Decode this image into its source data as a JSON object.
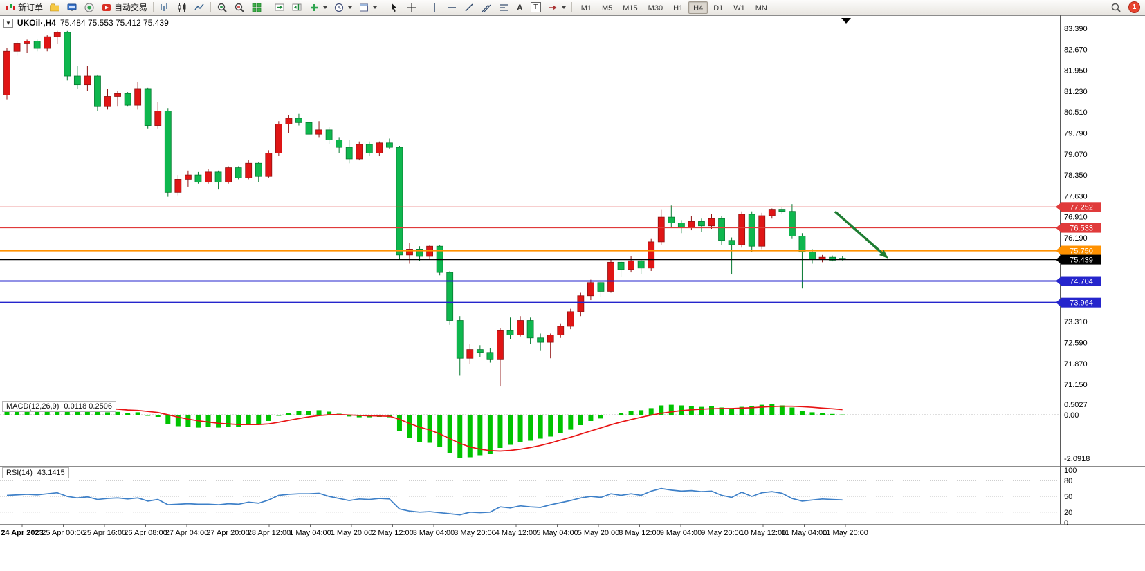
{
  "toolbar": {
    "new_order": "新订单",
    "auto_trading": "自动交易",
    "text_tool": "A",
    "text_label_tool": "T",
    "timeframes": [
      "M1",
      "M5",
      "M15",
      "M30",
      "H1",
      "H4",
      "D1",
      "W1",
      "MN"
    ],
    "active_timeframe": "H4",
    "badge_count": "1"
  },
  "chart": {
    "title": "UKOil·,H4",
    "ohlc_display": "75.484 75.553 75.412 75.439",
    "current_price": "75.439",
    "colors": {
      "up": "#e01515",
      "down": "#0eb74e",
      "up_edge": "#8f1212",
      "down_edge": "#077a31"
    },
    "price_axis": {
      "max": 83.39,
      "step": 0.72,
      "labels": [
        "83.390",
        "82.670",
        "81.950",
        "81.230",
        "80.510",
        "79.790",
        "79.070",
        "78.350",
        "77.630",
        "76.910",
        "76.190",
        "75.470",
        "74.750",
        "74.030",
        "73.310",
        "72.590",
        "71.870",
        "71.150"
      ]
    },
    "lines": [
      {
        "price": 77.252,
        "label": "77.252",
        "color": "#e03a3a",
        "width": 1.2
      },
      {
        "price": 76.533,
        "label": "76.533",
        "color": "#e03a3a",
        "width": 1.2
      },
      {
        "price": 75.75,
        "label": "75.750",
        "color": "#ff9100",
        "width": 2.2
      },
      {
        "price": 75.439,
        "label": "75.439",
        "color": "#000000",
        "width": 1.2
      },
      {
        "price": 74.704,
        "label": "74.704",
        "color": "#2525cc",
        "width": 2
      },
      {
        "price": 73.964,
        "label": "73.964",
        "color": "#2525cc",
        "width": 2
      }
    ],
    "arrow": {
      "from": [
        1207,
        284
      ],
      "to": [
        1284,
        352
      ],
      "color": "#1e7d32"
    },
    "candles": [
      [
        81.1,
        82.7,
        80.95,
        82.6
      ],
      [
        82.6,
        82.95,
        82.45,
        82.88
      ],
      [
        82.88,
        83.0,
        82.55,
        82.95
      ],
      [
        82.95,
        83.0,
        82.6,
        82.7
      ],
      [
        82.7,
        83.15,
        82.6,
        83.1
      ],
      [
        83.1,
        83.3,
        82.85,
        83.25
      ],
      [
        83.25,
        83.3,
        81.6,
        81.75
      ],
      [
        81.75,
        82.1,
        81.3,
        81.45
      ],
      [
        81.45,
        82.1,
        81.25,
        81.75
      ],
      [
        81.75,
        81.8,
        80.55,
        80.7
      ],
      [
        80.7,
        81.3,
        80.6,
        81.05
      ],
      [
        81.05,
        81.25,
        80.7,
        81.15
      ],
      [
        81.15,
        81.2,
        80.7,
        80.75
      ],
      [
        80.75,
        81.55,
        80.6,
        81.3
      ],
      [
        81.3,
        81.35,
        79.95,
        80.05
      ],
      [
        80.05,
        80.85,
        79.95,
        80.55
      ],
      [
        80.55,
        80.65,
        77.6,
        77.75
      ],
      [
        77.75,
        78.35,
        77.65,
        78.2
      ],
      [
        78.2,
        78.5,
        77.95,
        78.35
      ],
      [
        78.35,
        78.45,
        78.05,
        78.1
      ],
      [
        78.1,
        78.55,
        78.05,
        78.45
      ],
      [
        78.45,
        78.5,
        77.85,
        78.1
      ],
      [
        78.1,
        78.65,
        78.05,
        78.6
      ],
      [
        78.6,
        78.65,
        78.2,
        78.25
      ],
      [
        78.25,
        78.85,
        78.2,
        78.75
      ],
      [
        78.75,
        78.8,
        78.1,
        78.3
      ],
      [
        78.3,
        79.2,
        78.25,
        79.1
      ],
      [
        79.1,
        80.2,
        79.0,
        80.1
      ],
      [
        80.1,
        80.4,
        79.8,
        80.3
      ],
      [
        80.3,
        80.45,
        80.05,
        80.15
      ],
      [
        80.15,
        80.35,
        79.55,
        79.75
      ],
      [
        79.75,
        80.2,
        79.65,
        79.9
      ],
      [
        79.9,
        80.0,
        79.4,
        79.55
      ],
      [
        79.55,
        79.65,
        79.1,
        79.3
      ],
      [
        79.3,
        79.55,
        78.75,
        78.9
      ],
      [
        78.9,
        79.5,
        78.85,
        79.4
      ],
      [
        79.4,
        79.5,
        79.0,
        79.1
      ],
      [
        79.1,
        79.5,
        79.0,
        79.45
      ],
      [
        79.45,
        79.6,
        79.25,
        79.3
      ],
      [
        79.3,
        79.35,
        75.45,
        75.6
      ],
      [
        75.6,
        76.0,
        75.3,
        75.8
      ],
      [
        75.8,
        75.9,
        75.4,
        75.55
      ],
      [
        75.55,
        75.95,
        75.45,
        75.9
      ],
      [
        75.9,
        75.95,
        74.9,
        75.0
      ],
      [
        75.0,
        75.05,
        73.2,
        73.35
      ],
      [
        73.35,
        73.5,
        71.45,
        72.05
      ],
      [
        72.05,
        72.55,
        71.85,
        72.35
      ],
      [
        72.35,
        72.5,
        72.1,
        72.25
      ],
      [
        72.25,
        72.4,
        71.9,
        72.0
      ],
      [
        72.0,
        73.1,
        71.08,
        73.0
      ],
      [
        73.0,
        73.45,
        72.7,
        72.85
      ],
      [
        72.85,
        73.5,
        72.8,
        73.35
      ],
      [
        73.35,
        73.45,
        72.55,
        72.75
      ],
      [
        72.75,
        72.9,
        72.3,
        72.6
      ],
      [
        72.6,
        72.9,
        72.05,
        72.85
      ],
      [
        72.85,
        73.25,
        72.75,
        73.15
      ],
      [
        73.15,
        73.75,
        73.05,
        73.65
      ],
      [
        73.65,
        74.3,
        73.5,
        74.2
      ],
      [
        74.2,
        74.75,
        74.05,
        74.65
      ],
      [
        74.65,
        74.7,
        74.15,
        74.35
      ],
      [
        74.35,
        75.45,
        74.3,
        75.35
      ],
      [
        75.35,
        75.4,
        74.85,
        75.1
      ],
      [
        75.1,
        75.55,
        75.0,
        75.4
      ],
      [
        75.4,
        75.45,
        74.95,
        75.15
      ],
      [
        75.15,
        76.15,
        75.05,
        76.05
      ],
      [
        76.05,
        77.15,
        75.95,
        76.9
      ],
      [
        76.9,
        77.3,
        76.55,
        76.7
      ],
      [
        76.7,
        76.8,
        76.35,
        76.55
      ],
      [
        76.55,
        76.95,
        76.45,
        76.75
      ],
      [
        76.75,
        76.85,
        76.4,
        76.6
      ],
      [
        76.6,
        77.0,
        76.5,
        76.85
      ],
      [
        76.85,
        76.95,
        75.95,
        76.1
      ],
      [
        76.1,
        76.2,
        74.93,
        75.95
      ],
      [
        75.95,
        77.1,
        75.85,
        77.0
      ],
      [
        77.0,
        77.1,
        75.7,
        75.9
      ],
      [
        75.9,
        77.05,
        75.8,
        76.95
      ],
      [
        76.95,
        77.2,
        76.85,
        77.15
      ],
      [
        77.15,
        77.25,
        77.0,
        77.1
      ],
      [
        77.1,
        77.35,
        76.15,
        76.25
      ],
      [
        76.25,
        76.35,
        74.45,
        75.7
      ],
      [
        75.7,
        75.8,
        75.3,
        75.45
      ],
      [
        75.45,
        75.6,
        75.35,
        75.52
      ],
      [
        75.52,
        75.58,
        75.38,
        75.42
      ],
      [
        75.484,
        75.553,
        75.412,
        75.439
      ]
    ]
  },
  "macd": {
    "label": "MACD(12,26,9)",
    "values_display": "0.0118 0.2506",
    "scale": [
      "0.5027",
      "0.00",
      "-2.0918"
    ],
    "histogram_color": "#00c300",
    "signal_color": "#e81313",
    "histogram": [
      0.38,
      0.42,
      0.45,
      0.44,
      0.47,
      0.5,
      0.42,
      0.3,
      0.28,
      0.15,
      0.12,
      0.14,
      0.1,
      0.12,
      -0.05,
      -0.1,
      -0.45,
      -0.55,
      -0.6,
      -0.62,
      -0.6,
      -0.62,
      -0.58,
      -0.57,
      -0.5,
      -0.45,
      -0.3,
      -0.05,
      0.1,
      0.18,
      0.2,
      0.22,
      0.15,
      0.05,
      -0.08,
      -0.12,
      -0.12,
      -0.1,
      -0.12,
      -0.8,
      -1.1,
      -1.3,
      -1.35,
      -1.55,
      -1.85,
      -2.09,
      -2.05,
      -1.95,
      -1.9,
      -1.6,
      -1.45,
      -1.3,
      -1.25,
      -1.15,
      -1.05,
      -0.9,
      -0.72,
      -0.5,
      -0.3,
      -0.18,
      0.0,
      0.1,
      0.18,
      0.22,
      0.32,
      0.45,
      0.48,
      0.45,
      0.42,
      0.38,
      0.4,
      0.35,
      0.3,
      0.38,
      0.42,
      0.48,
      0.5,
      0.45,
      0.35,
      0.2,
      0.12,
      0.08,
      0.04,
      0.012
    ],
    "signal": [
      0.35,
      0.37,
      0.39,
      0.4,
      0.42,
      0.43,
      0.43,
      0.41,
      0.38,
      0.34,
      0.3,
      0.27,
      0.23,
      0.21,
      0.16,
      0.11,
      0.0,
      -0.11,
      -0.21,
      -0.29,
      -0.35,
      -0.41,
      -0.44,
      -0.47,
      -0.47,
      -0.47,
      -0.44,
      -0.36,
      -0.27,
      -0.18,
      -0.1,
      -0.04,
      0.0,
      0.01,
      -0.01,
      -0.03,
      -0.05,
      -0.06,
      -0.07,
      -0.22,
      -0.42,
      -0.6,
      -0.73,
      -0.92,
      -1.15,
      -1.38,
      -1.55,
      -1.66,
      -1.73,
      -1.75,
      -1.72,
      -1.66,
      -1.58,
      -1.48,
      -1.36,
      -1.22,
      -1.08,
      -0.93,
      -0.78,
      -0.63,
      -0.48,
      -0.35,
      -0.23,
      -0.12,
      -0.02,
      0.07,
      0.14,
      0.2,
      0.24,
      0.27,
      0.29,
      0.3,
      0.3,
      0.32,
      0.34,
      0.37,
      0.4,
      0.41,
      0.41,
      0.39,
      0.36,
      0.32,
      0.29,
      0.2506
    ]
  },
  "rsi": {
    "label": "RSI(14)",
    "value_display": "43.1415",
    "line_color": "#3e80c8",
    "scale": [
      "100",
      "80",
      "50",
      "20",
      "0"
    ],
    "levels": [
      80,
      50,
      20
    ],
    "values": [
      52,
      53,
      54,
      53,
      55,
      57,
      50,
      47,
      49,
      44,
      46,
      47,
      45,
      47,
      41,
      44,
      34,
      35,
      36,
      35,
      35,
      34,
      36,
      35,
      39,
      37,
      43,
      52,
      54,
      55,
      55,
      56,
      50,
      46,
      42,
      45,
      44,
      46,
      45,
      26,
      22,
      20,
      21,
      19,
      17,
      15,
      20,
      19,
      20,
      30,
      28,
      32,
      30,
      29,
      34,
      38,
      42,
      47,
      50,
      48,
      55,
      52,
      55,
      52,
      60,
      65,
      62,
      60,
      61,
      59,
      60,
      52,
      48,
      58,
      50,
      57,
      59,
      56,
      46,
      41,
      43,
      45,
      44,
      43.14
    ]
  },
  "time_axis": {
    "labels": [
      "24 Apr 2023",
      "25 Apr 00:00",
      "25 Apr 16:00",
      "26 Apr 08:00",
      "27 Apr 04:00",
      "27 Apr 20:00",
      "28 Apr 12:00",
      "1 May 04:00",
      "1 May 20:00",
      "2 May 12:00",
      "3 May 04:00",
      "3 May 20:00",
      "4 May 12:00",
      "5 May 04:00",
      "5 May 20:00",
      "8 May 12:00",
      "9 May 04:00",
      "9 May 20:00",
      "10 May 12:00",
      "11 May 04:00",
      "11 May 20:00"
    ]
  }
}
